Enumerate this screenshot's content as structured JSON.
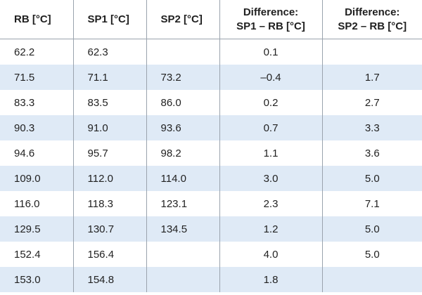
{
  "table": {
    "headers": [
      [
        "RB [°C]"
      ],
      [
        "SP1 [°C]"
      ],
      [
        "SP2 [°C]"
      ],
      [
        "Difference:",
        "SP1 – RB [°C]"
      ],
      [
        "Difference:",
        "SP2 – RB [°C]"
      ]
    ],
    "rows": [
      [
        "62.2",
        "62.3",
        "",
        "0.1",
        ""
      ],
      [
        "71.5",
        "71.1",
        "73.2",
        "–0.4",
        "1.7"
      ],
      [
        "83.3",
        "83.5",
        "86.0",
        "0.2",
        "2.7"
      ],
      [
        "90.3",
        "91.0",
        "93.6",
        "0.7",
        "3.3"
      ],
      [
        "94.6",
        "95.7",
        "98.2",
        "1.1",
        "3.6"
      ],
      [
        "109.0",
        "112.0",
        "114.0",
        "3.0",
        "5.0"
      ],
      [
        "116.0",
        "118.3",
        "123.1",
        "2.3",
        "7.1"
      ],
      [
        "129.5",
        "130.7",
        "134.5",
        "1.2",
        "5.0"
      ],
      [
        "152.4",
        "156.4",
        "",
        "4.0",
        "5.0"
      ],
      [
        "153.0",
        "154.8",
        "",
        "1.8",
        ""
      ]
    ]
  },
  "colors": {
    "stripe": "#dfeaf6",
    "grid": "#9aa3ad"
  }
}
